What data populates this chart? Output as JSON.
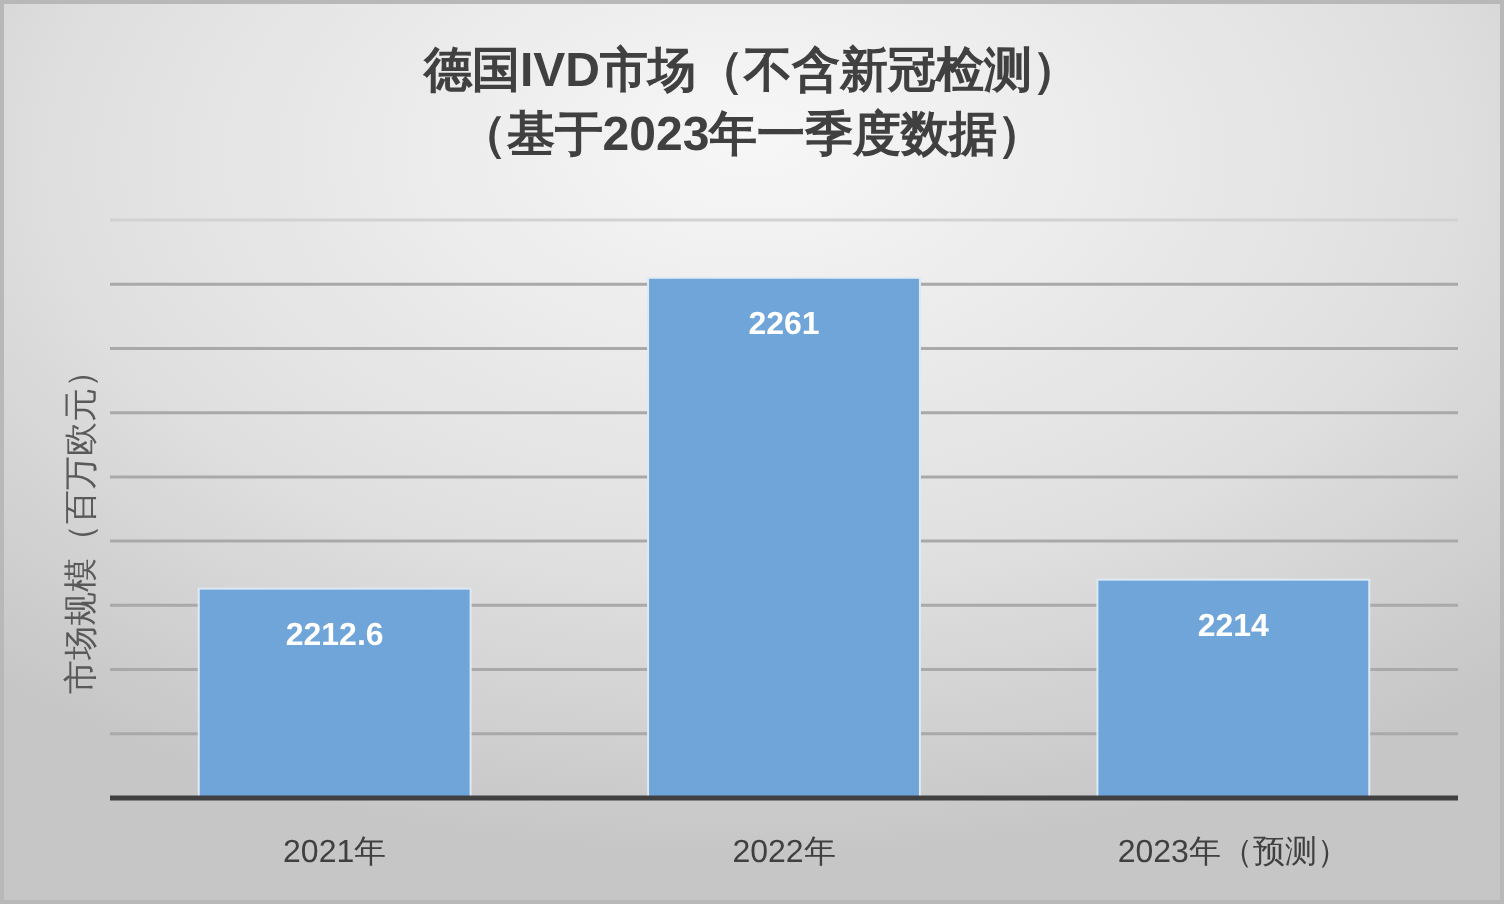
{
  "chart_data": {
    "type": "bar",
    "title": "德国IVD市场（不含新冠检测）",
    "subtitle": "（基于2023年一季度数据）",
    "ylabel": "市场规模（百万欧元）",
    "categories": [
      "2021年",
      "2022年",
      "2023年（预测）"
    ],
    "values": [
      2212.6,
      2261,
      2214
    ],
    "color": "#6fa5d8",
    "ylim": [
      2180,
      2270
    ],
    "yticks": [
      {
        "value": 2180,
        "label": null
      },
      {
        "value": 2190,
        "label": null
      },
      {
        "value": 2200,
        "label": null
      },
      {
        "value": 2210,
        "label": null
      },
      {
        "value": 2220,
        "label": null
      },
      {
        "value": 2230,
        "label": null
      },
      {
        "value": 2240,
        "label": null
      },
      {
        "value": 2250,
        "label": null
      },
      {
        "value": 2260,
        "label": null
      },
      {
        "value": 2270,
        "label": null
      }
    ],
    "grid": "y",
    "tick_labels": "x",
    "data_labels": true
  }
}
